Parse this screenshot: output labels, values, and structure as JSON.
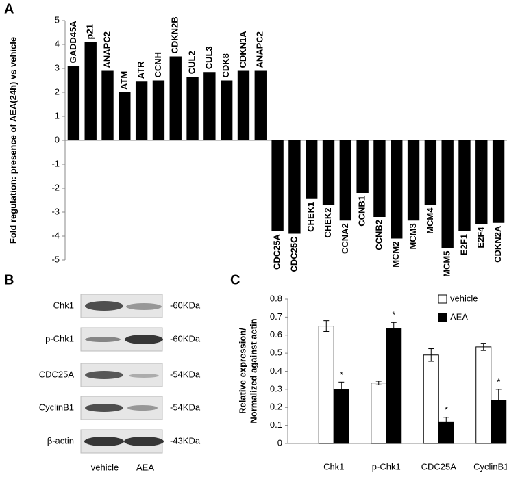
{
  "panels": [
    "A",
    "B",
    "C"
  ],
  "chart_data": [
    {
      "type": "bar",
      "ylabel": "Fold regulation: presence of AEA(24h) vs vehicle",
      "categories": [
        "GADD45A",
        "p21",
        "ANAPC2",
        "ATM",
        "ATR",
        "CCNH",
        "CDKN2B",
        "CUL2",
        "CUL3",
        "CDK8",
        "CDKN1A",
        "ANAPC2",
        "CDC25A",
        "CDC25C",
        "CHEK1",
        "CHEK2",
        "CCNA2",
        "CCNB1",
        "CCNB2",
        "MCM2",
        "MCM3",
        "MCM4",
        "MCM5",
        "E2F1",
        "E2F4",
        "CDKN2A"
      ],
      "values": [
        3.1,
        4.1,
        2.9,
        2.0,
        2.45,
        2.5,
        3.5,
        2.65,
        2.85,
        2.5,
        2.9,
        2.9,
        -3.8,
        -3.9,
        -2.45,
        -2.7,
        -3.35,
        -2.2,
        -3.2,
        -4.1,
        -3.35,
        -2.7,
        -4.5,
        -3.8,
        -3.5,
        -3.45
      ],
      "color": "#000000",
      "ylim": [
        -5,
        5
      ],
      "yticks": [
        -5,
        -4,
        -3,
        -2,
        -1,
        0,
        1,
        2,
        3,
        4,
        5
      ]
    },
    {
      "type": "grouped_bar",
      "ylabel": [
        "Relative expression/",
        "Normalized against actin"
      ],
      "categories": [
        "Chk1",
        "p-Chk1",
        "CDC25A",
        "CyclinB1"
      ],
      "series": [
        {
          "name": "vehicle",
          "color": "#ffffff",
          "values": [
            0.65,
            0.335,
            0.49,
            0.535
          ],
          "errors": [
            0.03,
            0.01,
            0.035,
            0.02
          ]
        },
        {
          "name": "AEA",
          "color": "#000000",
          "values": [
            0.3,
            0.635,
            0.12,
            0.24
          ],
          "errors": [
            0.04,
            0.035,
            0.025,
            0.06
          ],
          "significance": [
            "*",
            "*",
            "*",
            "*"
          ]
        }
      ],
      "ylim": [
        0,
        0.8
      ],
      "yticks": [
        0,
        0.1,
        0.2,
        0.3,
        0.4,
        0.5,
        0.6,
        0.7,
        0.8
      ],
      "legend": "top-right"
    }
  ],
  "blot": {
    "rows": [
      "Chk1",
      "p-Chk1",
      "CDC25A",
      "CyclinB1",
      "β-actin"
    ],
    "sizes": [
      "-60KDa",
      "-60KDa",
      "-54KDa",
      "-54KDa",
      "-43KDa"
    ],
    "columns": [
      "vehicle",
      "AEA"
    ]
  }
}
